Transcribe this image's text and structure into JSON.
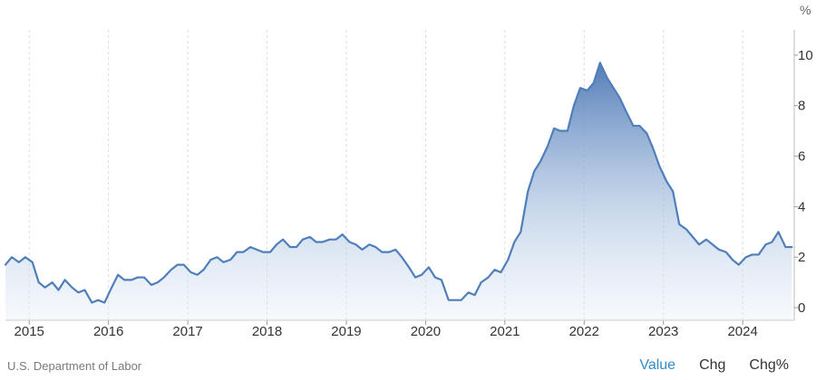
{
  "chart_data": {
    "type": "area",
    "title": "",
    "xlabel": "",
    "ylabel": "%",
    "ylim": [
      -0.5,
      11
    ],
    "xlim": [
      2014.7,
      2024.65
    ],
    "yticks": [
      0,
      2,
      4,
      6,
      8,
      10
    ],
    "ytick_labels": [
      "0",
      "2",
      "4",
      "6",
      "8",
      "10"
    ],
    "xticks": [
      2015,
      2016,
      2017,
      2018,
      2019,
      2020,
      2021,
      2022,
      2023,
      2024
    ],
    "xtick_labels": [
      "2015",
      "2016",
      "2017",
      "2018",
      "2019",
      "2020",
      "2021",
      "2022",
      "2023",
      "2024"
    ],
    "grid": "vertical",
    "series": [
      {
        "color": "#4f7fba",
        "x": [
          2014.7,
          2014.78,
          2014.87,
          2014.95,
          2015.04,
          2015.12,
          2015.2,
          2015.29,
          2015.37,
          2015.45,
          2015.54,
          2015.62,
          2015.7,
          2015.79,
          2015.87,
          2015.95,
          2016.04,
          2016.12,
          2016.2,
          2016.29,
          2016.37,
          2016.45,
          2016.54,
          2016.62,
          2016.7,
          2016.79,
          2016.87,
          2016.95,
          2017.04,
          2017.12,
          2017.2,
          2017.29,
          2017.37,
          2017.45,
          2017.54,
          2017.62,
          2017.7,
          2017.79,
          2017.87,
          2017.95,
          2018.04,
          2018.12,
          2018.2,
          2018.29,
          2018.37,
          2018.45,
          2018.54,
          2018.62,
          2018.7,
          2018.79,
          2018.87,
          2018.95,
          2019.04,
          2019.12,
          2019.2,
          2019.29,
          2019.37,
          2019.45,
          2019.54,
          2019.62,
          2019.7,
          2019.79,
          2019.87,
          2019.95,
          2020.04,
          2020.12,
          2020.2,
          2020.29,
          2020.37,
          2020.45,
          2020.54,
          2020.62,
          2020.7,
          2020.79,
          2020.87,
          2020.95,
          2021.04,
          2021.12,
          2021.2,
          2021.29,
          2021.37,
          2021.45,
          2021.54,
          2021.62,
          2021.7,
          2021.79,
          2021.87,
          2021.95,
          2022.04,
          2022.12,
          2022.2,
          2022.29,
          2022.37,
          2022.45,
          2022.54,
          2022.62,
          2022.7,
          2022.79,
          2022.87,
          2022.95,
          2023.04,
          2023.12,
          2023.2,
          2023.29,
          2023.37,
          2023.45,
          2023.54,
          2023.62,
          2023.7,
          2023.79,
          2023.87,
          2023.95,
          2024.04,
          2024.12,
          2024.2,
          2024.29,
          2024.37,
          2024.45,
          2024.54,
          2024.62
        ],
        "values": [
          1.7,
          2.0,
          1.8,
          2.0,
          1.8,
          1.0,
          0.8,
          1.0,
          0.7,
          1.1,
          0.8,
          0.6,
          0.7,
          0.2,
          0.3,
          0.2,
          0.8,
          1.3,
          1.1,
          1.1,
          1.2,
          1.2,
          0.9,
          1.0,
          1.2,
          1.5,
          1.7,
          1.7,
          1.4,
          1.3,
          1.5,
          1.9,
          2.0,
          1.8,
          1.9,
          2.2,
          2.2,
          2.4,
          2.3,
          2.2,
          2.2,
          2.5,
          2.7,
          2.4,
          2.4,
          2.7,
          2.8,
          2.6,
          2.6,
          2.7,
          2.7,
          2.9,
          2.6,
          2.5,
          2.3,
          2.5,
          2.4,
          2.2,
          2.2,
          2.3,
          2.0,
          1.6,
          1.2,
          1.3,
          1.6,
          1.2,
          1.1,
          0.3,
          0.3,
          0.3,
          0.6,
          0.5,
          1.0,
          1.2,
          1.5,
          1.4,
          1.9,
          2.6,
          3.0,
          4.6,
          5.4,
          5.8,
          6.4,
          7.1,
          7.0,
          7.0,
          8.0,
          8.7,
          8.6,
          8.9,
          9.7,
          9.1,
          8.7,
          8.3,
          7.7,
          7.2,
          7.2,
          6.9,
          6.3,
          5.6,
          5.0,
          4.6,
          3.3,
          3.1,
          2.8,
          2.5,
          2.7,
          2.5,
          2.3,
          2.2,
          1.9,
          1.7,
          2.0,
          2.1,
          2.1,
          2.5,
          2.6,
          3.0,
          2.4,
          2.4
        ]
      }
    ]
  },
  "footer": {
    "source": "U.S. Department of Labor",
    "toggles": [
      {
        "label": "Value",
        "active": true
      },
      {
        "label": "Chg",
        "active": false
      },
      {
        "label": "Chg%",
        "active": false
      }
    ]
  }
}
